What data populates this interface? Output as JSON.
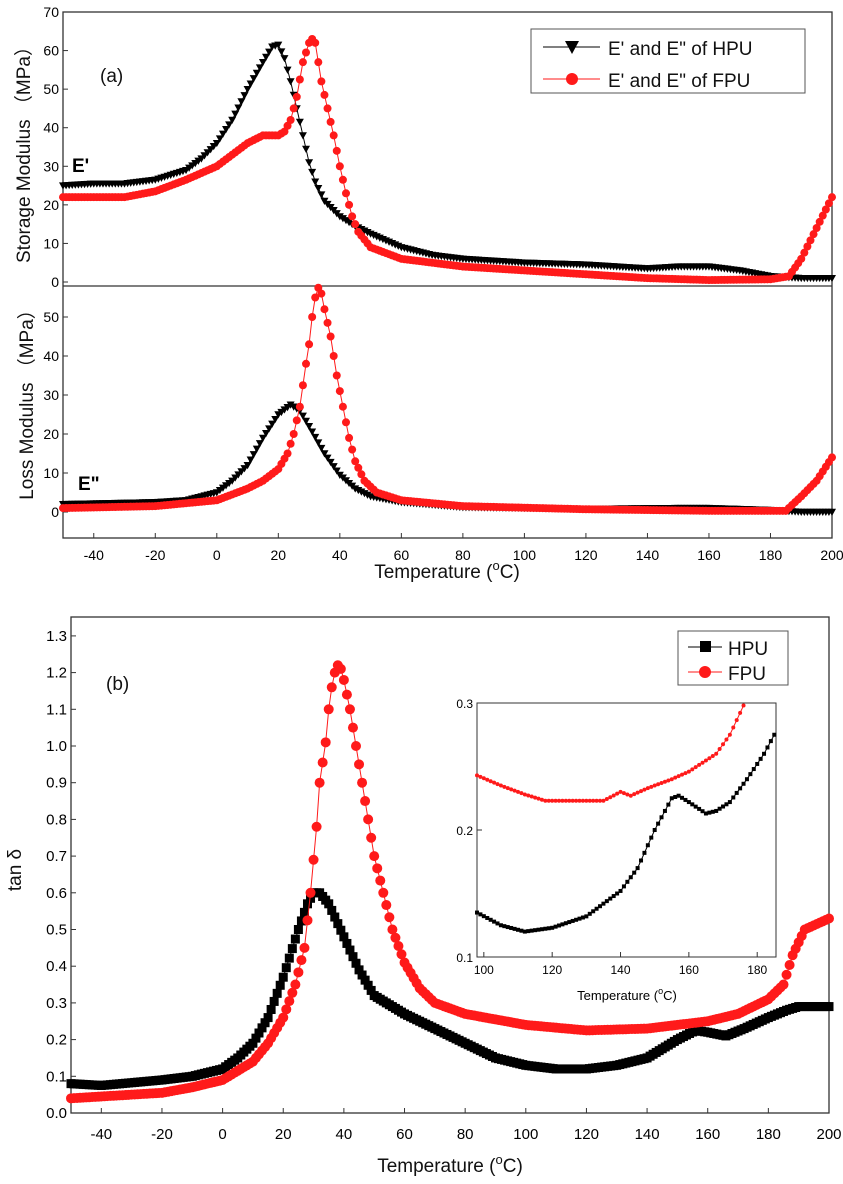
{
  "chart_data": [
    {
      "panel_label": "(a)",
      "type": "scatter",
      "xlabel": "Temperature (°C)",
      "xlabel_main": "Temperature (",
      "xlabel_sup": "o",
      "xlabel_end": "C)",
      "xlim": [
        -50,
        200
      ],
      "xticks": [
        -40,
        -20,
        0,
        20,
        40,
        60,
        80,
        100,
        120,
        140,
        160,
        180,
        200
      ],
      "legend_position": "top-right",
      "legend": [
        "E' and E\" of HPU",
        "E' and E\" of FPU"
      ],
      "colors": {
        "HPU": "#000000",
        "FPU": "#ff1a1a"
      },
      "subplots": [
        {
          "ylabel": "Storage Modulus （MPa）",
          "curve_label": "E'",
          "ylim": [
            0,
            70
          ],
          "yticks": [
            0,
            10,
            20,
            30,
            40,
            50,
            60,
            70
          ],
          "series": [
            {
              "name": "E' and E\" of HPU",
              "marker": "triangle-down",
              "x": [
                -50,
                -40,
                -30,
                -20,
                -10,
                -5,
                0,
                5,
                10,
                15,
                18,
                20,
                22,
                24,
                26,
                28,
                30,
                32,
                35,
                40,
                45,
                50,
                60,
                70,
                80,
                100,
                120,
                140,
                150,
                160,
                170,
                180,
                190,
                200
              ],
              "y": [
                25,
                25.5,
                25.5,
                26.5,
                29,
                32,
                36,
                42,
                50,
                57,
                61,
                61.5,
                58,
                52,
                45,
                38,
                31,
                26,
                21,
                17,
                14.5,
                12.5,
                9,
                7,
                6,
                5,
                4.5,
                3.5,
                4,
                4,
                3,
                1.5,
                1,
                1
              ]
            },
            {
              "name": "E' and E\" of FPU",
              "marker": "circle",
              "x": [
                -50,
                -40,
                -30,
                -20,
                -10,
                0,
                5,
                10,
                15,
                20,
                22,
                24,
                26,
                28,
                30,
                31,
                32,
                34,
                36,
                38,
                40,
                42,
                44,
                46,
                50,
                60,
                80,
                100,
                120,
                140,
                160,
                180,
                186,
                190,
                195,
                200
              ],
              "y": [
                22,
                22,
                22,
                23.5,
                26.5,
                30,
                33,
                36,
                38,
                38,
                39,
                42,
                48,
                57,
                62,
                63,
                62,
                52,
                45,
                38,
                30,
                23,
                17,
                13,
                9,
                6,
                4,
                3,
                2,
                1,
                0.5,
                0.7,
                1.5,
                6,
                14,
                22
              ]
            }
          ]
        },
        {
          "ylabel": "Loss Modulus （MPa）",
          "curve_label": "E\"",
          "ylim": [
            -7,
            58
          ],
          "yticks": [
            0,
            10,
            20,
            30,
            40,
            50
          ],
          "series": [
            {
              "name": "E' and E\" of HPU",
              "marker": "triangle-down",
              "x": [
                -50,
                -20,
                -10,
                0,
                5,
                10,
                15,
                20,
                24,
                27,
                30,
                35,
                40,
                45,
                50,
                60,
                80,
                120,
                150,
                160,
                180,
                190,
                200
              ],
              "y": [
                2,
                2.5,
                3,
                5,
                8,
                12,
                19,
                25,
                27.5,
                26,
                22,
                15,
                9.5,
                6,
                4,
                2.5,
                1.2,
                0.8,
                1,
                1,
                0.5,
                0,
                0
              ]
            },
            {
              "name": "E' and E\" of FPU",
              "marker": "circle",
              "x": [
                -50,
                -20,
                0,
                10,
                15,
                20,
                23,
                25,
                27,
                29,
                30,
                31,
                32,
                33,
                34,
                35,
                37,
                39,
                41,
                43,
                45,
                48,
                52,
                60,
                80,
                120,
                160,
                185,
                190,
                195,
                200
              ],
              "y": [
                1,
                1.5,
                3,
                6,
                8,
                11,
                15,
                20,
                27,
                38,
                43,
                50,
                55,
                57.5,
                56,
                52,
                45,
                35,
                27,
                19,
                13,
                8,
                5,
                3,
                1.5,
                0.7,
                0.3,
                0.3,
                4,
                8,
                14
              ]
            }
          ]
        }
      ]
    },
    {
      "panel_label": "(b)",
      "type": "scatter",
      "xlabel": "Temperature (°C)",
      "xlabel_main": "Temperature (",
      "xlabel_sup": "o",
      "xlabel_end": "C)",
      "ylabel": "tan δ",
      "xlim": [
        -50,
        200
      ],
      "ylim": [
        0,
        1.3
      ],
      "xticks": [
        -40,
        -20,
        0,
        20,
        40,
        60,
        80,
        100,
        120,
        140,
        160,
        180,
        200
      ],
      "yticks": [
        0.0,
        0.1,
        0.2,
        0.3,
        0.4,
        0.5,
        0.6,
        0.7,
        0.8,
        0.9,
        1.0,
        1.1,
        1.2,
        1.3
      ],
      "legend_position": "top-right",
      "legend": [
        "HPU",
        "FPU"
      ],
      "series": [
        {
          "name": "HPU",
          "marker": "square",
          "color": "#000000",
          "x": [
            -50,
            -40,
            -20,
            -10,
            0,
            5,
            10,
            15,
            20,
            25,
            28,
            30,
            32,
            35,
            40,
            45,
            50,
            60,
            70,
            80,
            90,
            100,
            110,
            120,
            130,
            140,
            150,
            156,
            160,
            166,
            172,
            180,
            186,
            190,
            200
          ],
          "y": [
            0.08,
            0.075,
            0.09,
            0.1,
            0.12,
            0.15,
            0.19,
            0.26,
            0.37,
            0.5,
            0.57,
            0.6,
            0.6,
            0.57,
            0.48,
            0.39,
            0.32,
            0.27,
            0.23,
            0.19,
            0.15,
            0.13,
            0.12,
            0.12,
            0.13,
            0.15,
            0.2,
            0.225,
            0.22,
            0.21,
            0.23,
            0.26,
            0.28,
            0.29,
            0.29
          ]
        },
        {
          "name": "FPU",
          "marker": "circle",
          "color": "#ff1a1a",
          "x": [
            -50,
            -30,
            -20,
            -10,
            0,
            10,
            15,
            20,
            24,
            27,
            29,
            31,
            32,
            34,
            35,
            36,
            37,
            38,
            39,
            40,
            42,
            44,
            46,
            48,
            50,
            53,
            56,
            60,
            65,
            70,
            80,
            100,
            120,
            140,
            160,
            170,
            180,
            185,
            188,
            192,
            200
          ],
          "y": [
            0.04,
            0.05,
            0.055,
            0.07,
            0.09,
            0.14,
            0.19,
            0.26,
            0.35,
            0.45,
            0.6,
            0.78,
            0.9,
            1.01,
            1.1,
            1.16,
            1.2,
            1.22,
            1.21,
            1.18,
            1.1,
            1.0,
            0.9,
            0.8,
            0.7,
            0.6,
            0.5,
            0.41,
            0.34,
            0.3,
            0.27,
            0.24,
            0.225,
            0.23,
            0.25,
            0.27,
            0.31,
            0.35,
            0.43,
            0.5,
            0.53
          ]
        }
      ],
      "inset": {
        "xlabel_main": "Temperature (",
        "xlabel_sup": "o",
        "xlabel_end": "C)",
        "xlim": [
          98,
          185.5
        ],
        "ylim": [
          0.1,
          0.3
        ],
        "xticks": [
          100,
          120,
          140,
          160,
          180
        ],
        "yticks": [
          0.1,
          0.2,
          0.3
        ],
        "series": [
          {
            "name": "HPU",
            "marker": "square",
            "color": "#000000",
            "x": [
              98,
              105,
              112,
              120,
              130,
              140,
              145,
              150,
              155,
              157,
              160,
              165,
              168,
              172,
              177,
              182,
              185
            ],
            "y": [
              0.135,
              0.125,
              0.12,
              0.123,
              0.132,
              0.152,
              0.17,
              0.2,
              0.225,
              0.227,
              0.222,
              0.213,
              0.215,
              0.222,
              0.24,
              0.26,
              0.275
            ]
          },
          {
            "name": "FPU",
            "marker": "circle",
            "color": "#ff1a1a",
            "x": [
              98,
              105,
              112,
              118,
              125,
              135,
              140,
              143,
              148,
              155,
              160,
              168,
              172,
              176
            ],
            "y": [
              0.243,
              0.235,
              0.228,
              0.223,
              0.223,
              0.223,
              0.23,
              0.227,
              0.233,
              0.24,
              0.246,
              0.26,
              0.275,
              0.298
            ]
          }
        ]
      }
    }
  ]
}
